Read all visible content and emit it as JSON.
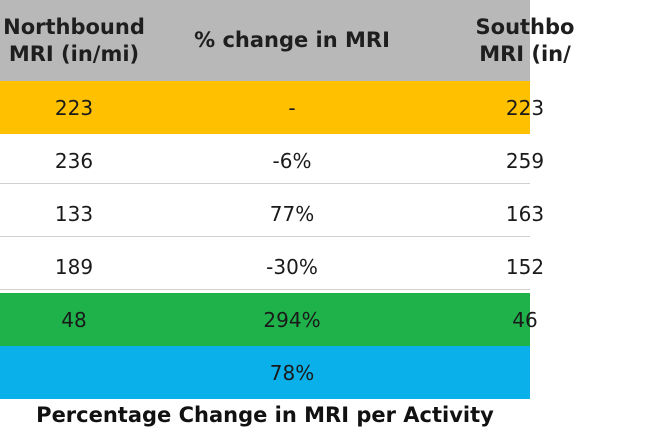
{
  "colors": {
    "header_bg": "#b8b8b8",
    "row_baseline": "#ffc000",
    "row_white": "#ffffff",
    "row_green": "#1fb14a",
    "row_blue": "#0ab0ea",
    "gridline": "#d0d0d0"
  },
  "header": {
    "col1_line1": "Northbound",
    "col1_line2": "MRI (in/mi)",
    "col2": "% change in MRI",
    "col3_line1": "Southbo",
    "col3_line2": "MRI (in/"
  },
  "rows": [
    {
      "col1": "223",
      "col2": "-",
      "col3": "223",
      "color_key": "row_baseline"
    },
    {
      "col1": "236",
      "col2": "-6%",
      "col3": "259",
      "color_key": "row_white"
    },
    {
      "col1": "133",
      "col2": "77%",
      "col3": "163",
      "color_key": "row_white"
    },
    {
      "col1": "189",
      "col2": "-30%",
      "col3": "152",
      "color_key": "row_white"
    },
    {
      "col1": "48",
      "col2": "294%",
      "col3": "46",
      "color_key": "row_green"
    },
    {
      "col1": "",
      "col2": "78%",
      "col3": "",
      "color_key": "row_blue"
    }
  ],
  "caption": "Percentage Change in MRI per Activity"
}
